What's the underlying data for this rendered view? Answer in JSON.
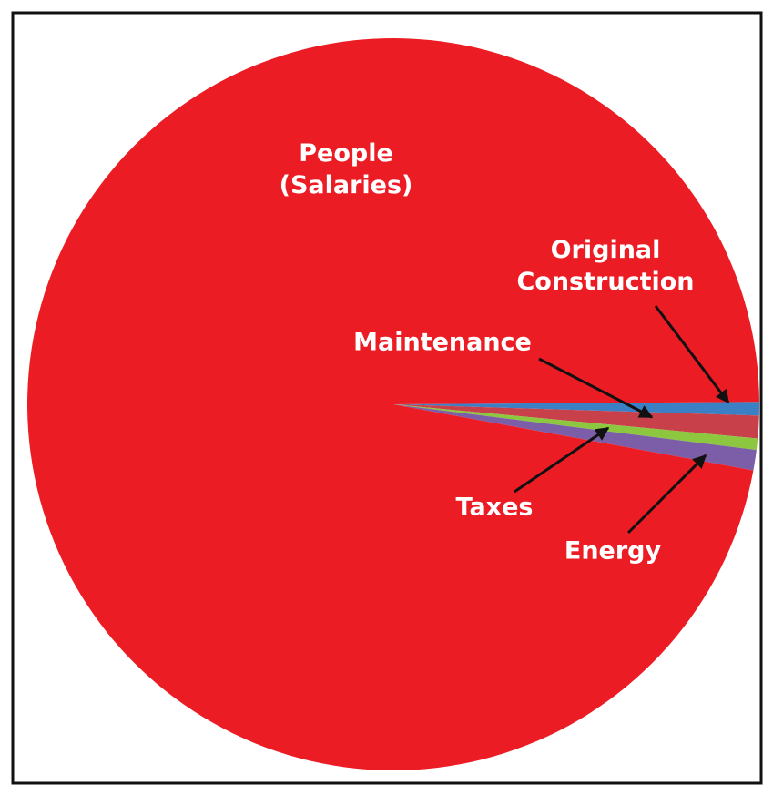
{
  "chart_data": {
    "type": "pie",
    "categories": [
      "Original Construction",
      "Maintenance",
      "Taxes",
      "Energy",
      "People (Salaries)"
    ],
    "values": [
      0.6,
      1,
      0.5,
      0.9,
      97
    ],
    "colors": [
      "#3b7fc4",
      "#c8414a",
      "#8dc63f",
      "#7b5ea7",
      "#ec1c24"
    ]
  }
}
